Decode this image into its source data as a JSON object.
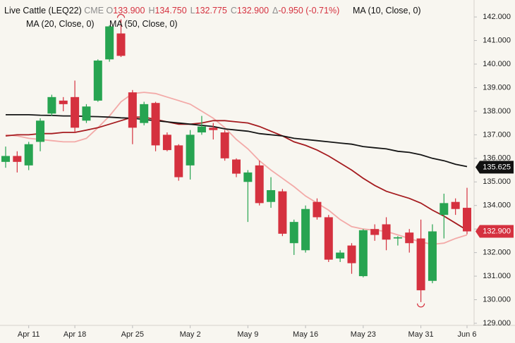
{
  "chart_data": {
    "type": "candlestick",
    "title": "Live Cattle (LEQ22)",
    "exchange": "CME",
    "quote": [
      {
        "label": "O",
        "text": "133.900"
      },
      {
        "label": "H",
        "text": "134.750"
      },
      {
        "label": "L",
        "text": "132.775"
      },
      {
        "label": "C",
        "text": "132.900"
      },
      {
        "label": "Δ",
        "text": "-0.950 (-0.71%)"
      }
    ],
    "categories": [
      null,
      null,
      "Apr 11",
      null,
      null,
      null,
      "Apr 18",
      null,
      null,
      null,
      null,
      "Apr 25",
      null,
      null,
      null,
      null,
      "May 2",
      null,
      null,
      null,
      null,
      "May 9",
      null,
      null,
      null,
      null,
      "May 16",
      null,
      null,
      null,
      null,
      "May 23",
      null,
      null,
      null,
      null,
      "May 31",
      null,
      null,
      null,
      "Jun 6"
    ],
    "open": [
      135.85,
      136.1,
      135.7,
      136.7,
      137.9,
      138.45,
      138.6,
      137.6,
      138.45,
      140.2,
      141.3,
      138.8,
      137.5,
      138.35,
      137.0,
      136.55,
      135.7,
      137.1,
      137.3,
      137.1,
      135.95,
      135.0,
      135.7,
      134.15,
      134.6,
      132.4,
      132.1,
      134.15,
      133.5,
      131.75,
      132.3,
      131.0,
      133.0,
      133.2,
      132.6,
      132.85,
      132.6,
      130.8,
      133.6,
      134.15,
      133.9
    ],
    "high": [
      136.5,
      136.3,
      136.7,
      137.7,
      138.7,
      138.6,
      139.3,
      138.3,
      140.2,
      141.65,
      141.9,
      138.9,
      138.4,
      138.4,
      137.1,
      136.6,
      137.2,
      137.8,
      137.5,
      137.2,
      136.0,
      135.5,
      135.9,
      135.2,
      134.7,
      133.4,
      134.0,
      134.3,
      133.6,
      132.1,
      132.4,
      133.0,
      133.2,
      133.5,
      132.7,
      133.0,
      133.4,
      133.2,
      134.5,
      134.3,
      134.75
    ],
    "low": [
      135.6,
      135.4,
      135.5,
      136.3,
      137.8,
      138.0,
      137.1,
      137.5,
      138.4,
      140.1,
      140.3,
      136.6,
      137.4,
      136.3,
      136.3,
      135.05,
      135.1,
      137.0,
      136.8,
      135.9,
      135.2,
      133.3,
      134.0,
      133.9,
      132.7,
      131.9,
      132.0,
      133.4,
      131.6,
      131.6,
      131.1,
      130.95,
      132.5,
      132.1,
      132.3,
      132.0,
      129.9,
      130.7,
      132.6,
      133.6,
      132.775
    ],
    "close": [
      136.1,
      135.85,
      136.6,
      137.6,
      138.6,
      138.3,
      137.3,
      138.2,
      140.15,
      141.6,
      140.35,
      137.3,
      138.3,
      136.55,
      136.35,
      135.2,
      137.0,
      137.35,
      137.2,
      136.0,
      135.35,
      135.4,
      134.1,
      134.65,
      132.8,
      133.3,
      133.85,
      133.5,
      131.7,
      132.0,
      131.55,
      132.95,
      132.75,
      132.55,
      132.65,
      132.4,
      130.4,
      132.9,
      134.1,
      133.85,
      132.9
    ],
    "up_color": "#27a451",
    "down_color": "#d5313f",
    "series": [
      {
        "name": "MA (10, Close, 0)",
        "color": "#f3aaa8",
        "values": [
          137.0,
          136.95,
          136.85,
          136.8,
          136.75,
          136.7,
          136.7,
          136.85,
          137.3,
          137.8,
          138.4,
          138.75,
          138.8,
          138.75,
          138.6,
          138.45,
          138.3,
          138.0,
          137.7,
          137.3,
          136.8,
          136.4,
          135.9,
          135.5,
          135.15,
          134.8,
          134.4,
          134.1,
          133.8,
          133.4,
          133.1,
          133.0,
          132.95,
          132.9,
          132.75,
          132.6,
          132.45,
          132.35,
          132.4,
          132.6,
          132.75
        ]
      },
      {
        "name": "MA (20, Close, 0)",
        "color": "#a51b1f",
        "values": [
          136.95,
          137.0,
          137.0,
          137.05,
          137.05,
          137.1,
          137.1,
          137.2,
          137.3,
          137.45,
          137.6,
          137.75,
          137.75,
          137.65,
          137.55,
          137.45,
          137.45,
          137.5,
          137.6,
          137.6,
          137.55,
          137.5,
          137.35,
          137.15,
          136.95,
          136.7,
          136.55,
          136.35,
          136.1,
          135.8,
          135.5,
          135.15,
          134.85,
          134.6,
          134.45,
          134.3,
          134.1,
          133.8,
          133.55,
          133.25,
          132.95
        ]
      },
      {
        "name": "MA (50, Close, 0)",
        "color": "#141414",
        "values": [
          137.85,
          137.85,
          137.85,
          137.83,
          137.82,
          137.8,
          137.8,
          137.78,
          137.77,
          137.75,
          137.72,
          137.7,
          137.65,
          137.6,
          137.55,
          137.5,
          137.45,
          137.4,
          137.35,
          137.25,
          137.2,
          137.15,
          137.05,
          137.0,
          136.95,
          136.85,
          136.8,
          136.75,
          136.7,
          136.65,
          136.6,
          136.5,
          136.45,
          136.4,
          136.3,
          136.25,
          136.15,
          136.0,
          135.9,
          135.75,
          135.65
        ]
      }
    ],
    "last_tags": [
      {
        "value": 135.625,
        "label": "135.625",
        "color": "#111111"
      },
      {
        "value": 132.9,
        "label": "132.900",
        "color": "#d5313f"
      }
    ],
    "ylim": [
      128.91,
      142.72
    ],
    "yticks": [
      {
        "value": 142,
        "label": "142.000"
      },
      {
        "value": 141,
        "label": "141.000"
      },
      {
        "value": 140,
        "label": "140.000"
      },
      {
        "value": 139,
        "label": "139.000"
      },
      {
        "value": 138,
        "label": "138.000"
      },
      {
        "value": 137,
        "label": "137.000"
      },
      {
        "value": 136,
        "label": "136.000"
      },
      {
        "value": 135,
        "label": "135.000"
      },
      {
        "value": 134,
        "label": "134.000"
      },
      {
        "value": 133,
        "label": "133.000"
      },
      {
        "value": 132,
        "label": "132.000"
      },
      {
        "value": 131,
        "label": "131.000"
      },
      {
        "value": 130,
        "label": "130.000"
      },
      {
        "value": 129,
        "label": "129.000"
      }
    ]
  }
}
